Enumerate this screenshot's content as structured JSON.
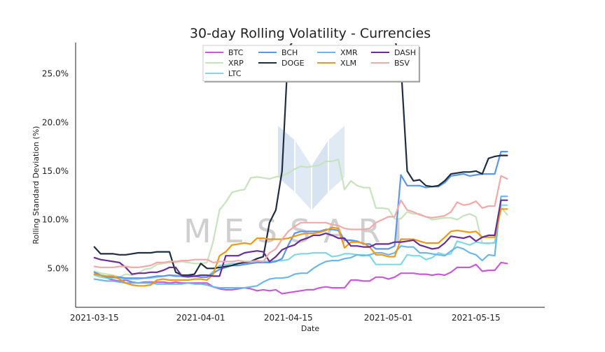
{
  "chart_data": {
    "type": "line",
    "title": "30-day Rolling Volatility - Currencies",
    "xlabel": "Date",
    "ylabel": "Rolling Standard Deviation (%)",
    "x": [
      "2021-03-15",
      "2021-03-16",
      "2021-03-17",
      "2021-03-18",
      "2021-03-19",
      "2021-03-20",
      "2021-03-21",
      "2021-03-22",
      "2021-03-23",
      "2021-03-24",
      "2021-03-25",
      "2021-03-26",
      "2021-03-27",
      "2021-03-28",
      "2021-03-29",
      "2021-03-30",
      "2021-03-31",
      "2021-04-01",
      "2021-04-02",
      "2021-04-03",
      "2021-04-04",
      "2021-04-05",
      "2021-04-06",
      "2021-04-07",
      "2021-04-08",
      "2021-04-09",
      "2021-04-10",
      "2021-04-11",
      "2021-04-12",
      "2021-04-13",
      "2021-04-14",
      "2021-04-15",
      "2021-04-16",
      "2021-04-17",
      "2021-04-18",
      "2021-04-19",
      "2021-04-20",
      "2021-04-21",
      "2021-04-22",
      "2021-04-23",
      "2021-04-24",
      "2021-04-25",
      "2021-04-26",
      "2021-04-27",
      "2021-04-28",
      "2021-04-29",
      "2021-04-30",
      "2021-05-01",
      "2021-05-02",
      "2021-05-03",
      "2021-05-04",
      "2021-05-05",
      "2021-05-06",
      "2021-05-07",
      "2021-05-08",
      "2021-05-09",
      "2021-05-10",
      "2021-05-11",
      "2021-05-12",
      "2021-05-13",
      "2021-05-14",
      "2021-05-15",
      "2021-05-16",
      "2021-05-17",
      "2021-05-18",
      "2021-05-19",
      "2021-05-20"
    ],
    "x_ticks": [
      "2021-03-15",
      "2021-04-01",
      "2021-04-15",
      "2021-05-01",
      "2021-05-15"
    ],
    "y_ticks": [
      5,
      10,
      15,
      20,
      25
    ],
    "y_tick_labels": [
      "5.0%",
      "10.0%",
      "15.0%",
      "20.0%",
      "25.0%"
    ],
    "xlim": [
      "2021-03-12",
      "2021-05-26"
    ],
    "ylim": [
      1.0,
      28.2
    ],
    "grid": false,
    "legend": {
      "placement": "top-center",
      "columns": 4
    },
    "watermark": "MESSARI",
    "series": [
      {
        "name": "BTC",
        "color": "#c65bd6",
        "values": [
          4.4,
          4.3,
          4.0,
          3.8,
          3.7,
          3.8,
          3.6,
          3.5,
          3.6,
          3.6,
          3.6,
          3.6,
          3.5,
          3.6,
          3.5,
          3.5,
          3.5,
          3.5,
          3.5,
          3.1,
          2.9,
          2.8,
          2.8,
          2.9,
          3.0,
          2.9,
          2.7,
          2.8,
          2.7,
          2.8,
          2.4,
          2.5,
          2.6,
          2.7,
          2.8,
          2.8,
          3.0,
          3.1,
          3.0,
          3.0,
          3.0,
          3.8,
          3.8,
          3.7,
          3.7,
          4.1,
          4.1,
          3.9,
          4.1,
          4.5,
          4.5,
          4.5,
          4.4,
          4.4,
          4.3,
          4.4,
          4.3,
          4.6,
          5.1,
          5.1,
          5.1,
          5.4,
          4.7,
          4.8,
          4.8,
          5.6,
          5.5
        ]
      },
      {
        "name": "XRP",
        "color": "#c7e3bc",
        "values": [
          4.7,
          4.5,
          4.4,
          4.3,
          4.1,
          4.4,
          4.3,
          4.5,
          4.9,
          5.0,
          5.4,
          5.5,
          5.6,
          5.6,
          5.7,
          5.6,
          5.5,
          5.5,
          5.6,
          7.8,
          11.0,
          11.8,
          12.8,
          13.0,
          13.1,
          14.3,
          14.4,
          14.3,
          14.2,
          14.4,
          14.5,
          14.8,
          15.2,
          15.5,
          15.4,
          15.5,
          15.6,
          16.0,
          16.0,
          16.2,
          13.1,
          14.0,
          13.5,
          13.3,
          13.3,
          11.2,
          11.2,
          11.1,
          10.1,
          10.1,
          10.8,
          10.6,
          10.6,
          10.3,
          10.0,
          10.1,
          10.2,
          10.2,
          10.0,
          10.4,
          10.6,
          10.3,
          7.6,
          7.5,
          7.7,
          11.3,
          10.5
        ]
      },
      {
        "name": "LTC",
        "color": "#7ed8e6",
        "values": [
          4.3,
          4.1,
          4.0,
          4.0,
          4.0,
          3.9,
          3.9,
          3.9,
          4.0,
          4.0,
          4.1,
          4.2,
          4.3,
          4.3,
          4.2,
          4.2,
          4.2,
          4.1,
          4.1,
          4.7,
          5.3,
          5.4,
          5.5,
          5.5,
          5.6,
          5.6,
          5.7,
          5.7,
          5.7,
          5.8,
          5.8,
          5.9,
          6.4,
          6.5,
          6.5,
          6.6,
          6.6,
          6.6,
          6.2,
          6.3,
          6.5,
          6.5,
          6.4,
          6.4,
          6.3,
          5.4,
          5.4,
          5.4,
          5.4,
          5.4,
          6.4,
          6.3,
          6.3,
          5.9,
          6.1,
          6.6,
          6.4,
          6.5,
          7.8,
          7.6,
          7.4,
          7.7,
          7.6,
          7.6,
          7.6,
          11.5,
          11.5
        ]
      },
      {
        "name": "BCH",
        "color": "#5b95ec",
        "values": [
          4.6,
          4.3,
          4.1,
          4.1,
          4.1,
          4.0,
          4.0,
          4.0,
          4.0,
          4.1,
          4.2,
          4.2,
          4.3,
          4.2,
          4.2,
          4.1,
          4.2,
          4.1,
          4.1,
          4.5,
          4.9,
          5.1,
          5.3,
          5.3,
          5.4,
          5.5,
          5.6,
          5.6,
          5.6,
          5.7,
          6.0,
          7.4,
          8.6,
          8.8,
          8.8,
          8.8,
          8.8,
          9.0,
          9.0,
          8.9,
          7.9,
          7.9,
          7.8,
          7.5,
          7.5,
          7.0,
          7.0,
          7.0,
          7.3,
          14.6,
          13.5,
          13.5,
          13.5,
          13.3,
          13.4,
          13.4,
          13.8,
          14.5,
          14.6,
          14.7,
          14.5,
          14.6,
          14.7,
          14.7,
          14.7,
          17.0,
          17.0
        ]
      },
      {
        "name": "DOGE",
        "color": "#1e2d3f",
        "values": [
          7.2,
          6.5,
          6.5,
          6.5,
          6.4,
          6.4,
          6.5,
          6.6,
          6.6,
          6.6,
          6.7,
          6.7,
          6.7,
          4.6,
          4.3,
          4.3,
          4.4,
          5.5,
          5.0,
          5.0,
          5.1,
          5.2,
          5.3,
          5.5,
          5.6,
          5.7,
          6.0,
          6.2,
          9.7,
          11.0,
          15.0,
          27.6,
          28.6,
          28.6,
          28.6,
          28.6,
          28.6,
          28.6,
          28.6,
          28.6,
          28.6,
          28.6,
          28.6,
          28.6,
          28.6,
          28.6,
          28.6,
          28.6,
          28.6,
          26.0,
          15.0,
          14.0,
          14.1,
          13.5,
          13.4,
          13.5,
          14.0,
          14.7,
          14.8,
          14.9,
          14.9,
          15.0,
          14.7,
          16.3,
          16.5,
          16.6,
          16.6
        ]
      },
      {
        "name": "XMR",
        "color": "#6cb6e8",
        "values": [
          3.9,
          3.8,
          3.7,
          3.7,
          3.6,
          3.5,
          3.5,
          3.5,
          3.5,
          3.5,
          3.4,
          3.4,
          3.4,
          3.4,
          3.4,
          3.5,
          3.4,
          3.4,
          3.3,
          3.1,
          3.0,
          3.0,
          3.0,
          3.0,
          3.0,
          3.1,
          3.2,
          3.6,
          3.9,
          4.0,
          4.0,
          4.1,
          4.4,
          4.5,
          4.5,
          5.0,
          5.4,
          5.7,
          5.8,
          5.8,
          6.0,
          6.1,
          6.4,
          6.3,
          6.4,
          6.6,
          6.6,
          6.4,
          6.6,
          7.3,
          7.2,
          7.2,
          6.6,
          6.6,
          6.5,
          6.4,
          6.3,
          6.8,
          7.2,
          7.0,
          6.6,
          6.4,
          5.8,
          6.4,
          6.3,
          12.4,
          12.4
        ]
      },
      {
        "name": "XLM",
        "color": "#f0980f",
        "values": [
          4.4,
          4.3,
          4.2,
          4.2,
          3.9,
          3.5,
          3.3,
          3.2,
          3.2,
          3.3,
          3.8,
          3.9,
          3.8,
          3.8,
          3.8,
          3.8,
          3.9,
          3.9,
          3.8,
          4.4,
          6.3,
          6.7,
          7.4,
          7.5,
          7.6,
          7.5,
          8.1,
          8.1,
          8.0,
          8.0,
          8.0,
          8.1,
          8.3,
          8.5,
          8.6,
          8.6,
          8.7,
          8.9,
          9.2,
          9.1,
          7.1,
          7.7,
          7.7,
          7.6,
          7.2,
          6.4,
          6.4,
          6.2,
          6.2,
          8.0,
          8.0,
          8.0,
          7.8,
          7.6,
          7.6,
          7.6,
          8.2,
          8.8,
          8.9,
          8.8,
          8.7,
          8.8,
          8.2,
          8.2,
          8.2,
          11.1,
          11.1
        ]
      },
      {
        "name": "DASH",
        "color": "#6a2d96",
        "values": [
          6.1,
          5.9,
          5.8,
          5.7,
          5.6,
          5.1,
          4.4,
          4.5,
          4.5,
          4.6,
          4.6,
          4.8,
          5.1,
          5.1,
          4.2,
          4.2,
          4.2,
          4.3,
          4.3,
          4.2,
          4.2,
          6.3,
          6.3,
          6.3,
          6.6,
          6.7,
          6.8,
          6.7,
          5.7,
          6.2,
          6.9,
          7.2,
          7.4,
          7.9,
          8.1,
          8.4,
          8.4,
          8.6,
          8.4,
          8.1,
          8.1,
          7.3,
          7.3,
          7.2,
          7.2,
          7.5,
          7.5,
          7.5,
          7.7,
          7.7,
          7.8,
          7.9,
          7.4,
          7.2,
          7.0,
          7.1,
          7.6,
          8.3,
          8.2,
          8.1,
          8.3,
          7.8,
          8.2,
          8.4,
          8.4,
          12.0,
          12.0
        ]
      },
      {
        "name": "BSV",
        "color": "#f4a8a8",
        "values": [
          5.2,
          5.1,
          5.1,
          5.1,
          5.2,
          5.2,
          5.1,
          5.1,
          5.2,
          5.3,
          5.6,
          5.6,
          5.7,
          5.7,
          5.8,
          5.8,
          5.9,
          5.9,
          5.9,
          5.6,
          5.7,
          5.7,
          5.7,
          5.8,
          5.7,
          5.7,
          5.8,
          5.7,
          6.6,
          7.0,
          8.0,
          8.8,
          9.3,
          9.7,
          9.7,
          9.7,
          9.7,
          9.7,
          9.5,
          9.4,
          9.1,
          9.0,
          9.0,
          9.0,
          9.1,
          9.7,
          10.0,
          10.3,
          10.3,
          12.0,
          11.0,
          10.8,
          10.5,
          10.3,
          10.2,
          10.3,
          10.4,
          10.8,
          11.8,
          11.5,
          11.6,
          11.9,
          11.2,
          11.4,
          11.4,
          14.5,
          14.2
        ]
      }
    ]
  }
}
